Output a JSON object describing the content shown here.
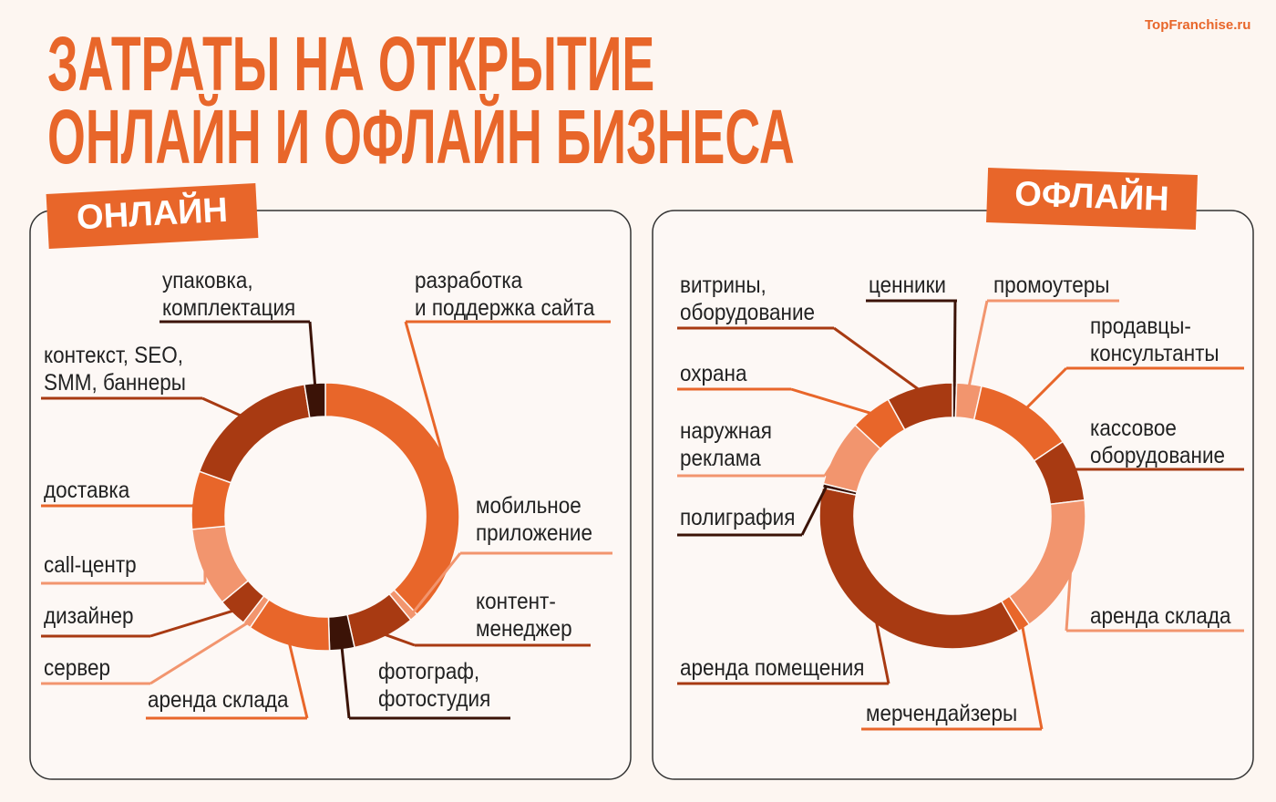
{
  "header": {
    "title": [
      "ЗАТРАТЫ НА ОТКРЫТИЕ",
      "ОНЛАЙН И ОФЛАЙН БИЗНЕСА"
    ],
    "brand": "TopFranchise.ru"
  },
  "chart_data": [
    {
      "type": "donut",
      "title": "ОНЛАЙН",
      "categories": [
        "разработка\nи поддержка сайта",
        "мобильное\nприложение",
        "контент-\nменеджер",
        "фотограф,\nфотостудия",
        "аренда склада",
        "сервер",
        "дизайнер",
        "call-центр",
        "доставка",
        "контекст, SEO,\nSMM, баннеры",
        "упаковка,\nкомплектация"
      ],
      "values": [
        38,
        1,
        7.5,
        3,
        10,
        1,
        3.5,
        9.5,
        7,
        17,
        2.5
      ],
      "colors": [
        "#e8662a",
        "#f2956e",
        "#a83a12",
        "#3b1307",
        "#e8662a",
        "#f2956e",
        "#a83a12",
        "#f2956e",
        "#e8662a",
        "#a83a12",
        "#3b1307"
      ]
    },
    {
      "type": "donut",
      "title": "ОФЛАЙН",
      "categories": [
        "ценники",
        "промоутеры",
        "продавцы-\nконсультанты",
        "кассовое\nоборудование",
        "аренда склада",
        "мерчендайзеры",
        "аренда помещения",
        "полиграфия",
        "наружная\nреклама",
        "охрана",
        "витрины,\nоборудование"
      ],
      "values": [
        0.5,
        3,
        12,
        7.5,
        17,
        1.5,
        36.5,
        0.5,
        8,
        5,
        8
      ],
      "colors": [
        "#3b1307",
        "#f2956e",
        "#e8662a",
        "#a83a12",
        "#f2956e",
        "#e8662a",
        "#a83a12",
        "#3b1307",
        "#f2956e",
        "#e8662a",
        "#a83a12"
      ]
    }
  ]
}
